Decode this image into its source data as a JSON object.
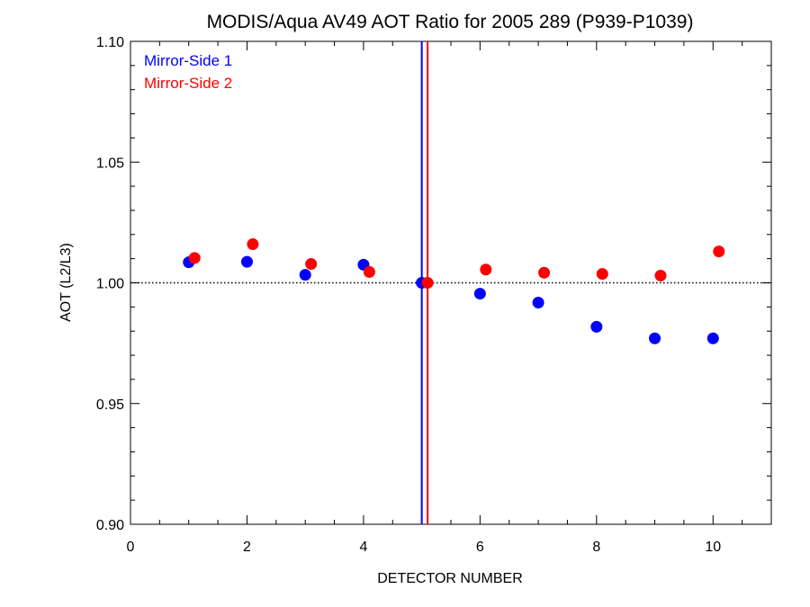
{
  "chart_data": {
    "type": "scatter",
    "title": "MODIS/Aqua AV49 AOT Ratio for 2005 289 (P939-P1039)",
    "xlabel": "DETECTOR NUMBER",
    "ylabel": "AOT (L2/L3)",
    "xlim": [
      0,
      11
    ],
    "ylim": [
      0.9,
      1.1
    ],
    "xticks": [
      0,
      2,
      4,
      6,
      8,
      10
    ],
    "xtick_labels": [
      "0",
      "2",
      "4",
      "6",
      "8",
      "10"
    ],
    "yticks": [
      0.9,
      0.95,
      1.0,
      1.05,
      1.1
    ],
    "ytick_labels": [
      "0.90",
      "0.95",
      "1.00",
      "1.05",
      "1.10"
    ],
    "reference_line_y": 1.0,
    "grid": false,
    "legend_position": "top-left",
    "series": [
      {
        "name": "Mirror-Side 1",
        "color": "#0000ff",
        "x": [
          1,
          2,
          3,
          4,
          5,
          6,
          7,
          8,
          9,
          10
        ],
        "y": [
          1.0085,
          1.0087,
          1.0033,
          1.0075,
          1.0,
          0.9955,
          0.9918,
          0.9818,
          0.977,
          0.977
        ],
        "vertical_line_x": 5.0
      },
      {
        "name": "Mirror-Side 2",
        "color": "#ff0000",
        "x": [
          1.1,
          2.1,
          3.1,
          4.1,
          5.1,
          6.1,
          7.1,
          8.1,
          9.1,
          10.1
        ],
        "y": [
          1.0103,
          1.016,
          1.0078,
          1.0045,
          1.0,
          1.0055,
          1.0042,
          1.0037,
          1.003,
          1.013
        ],
        "vertical_line_x": 5.1
      }
    ]
  }
}
